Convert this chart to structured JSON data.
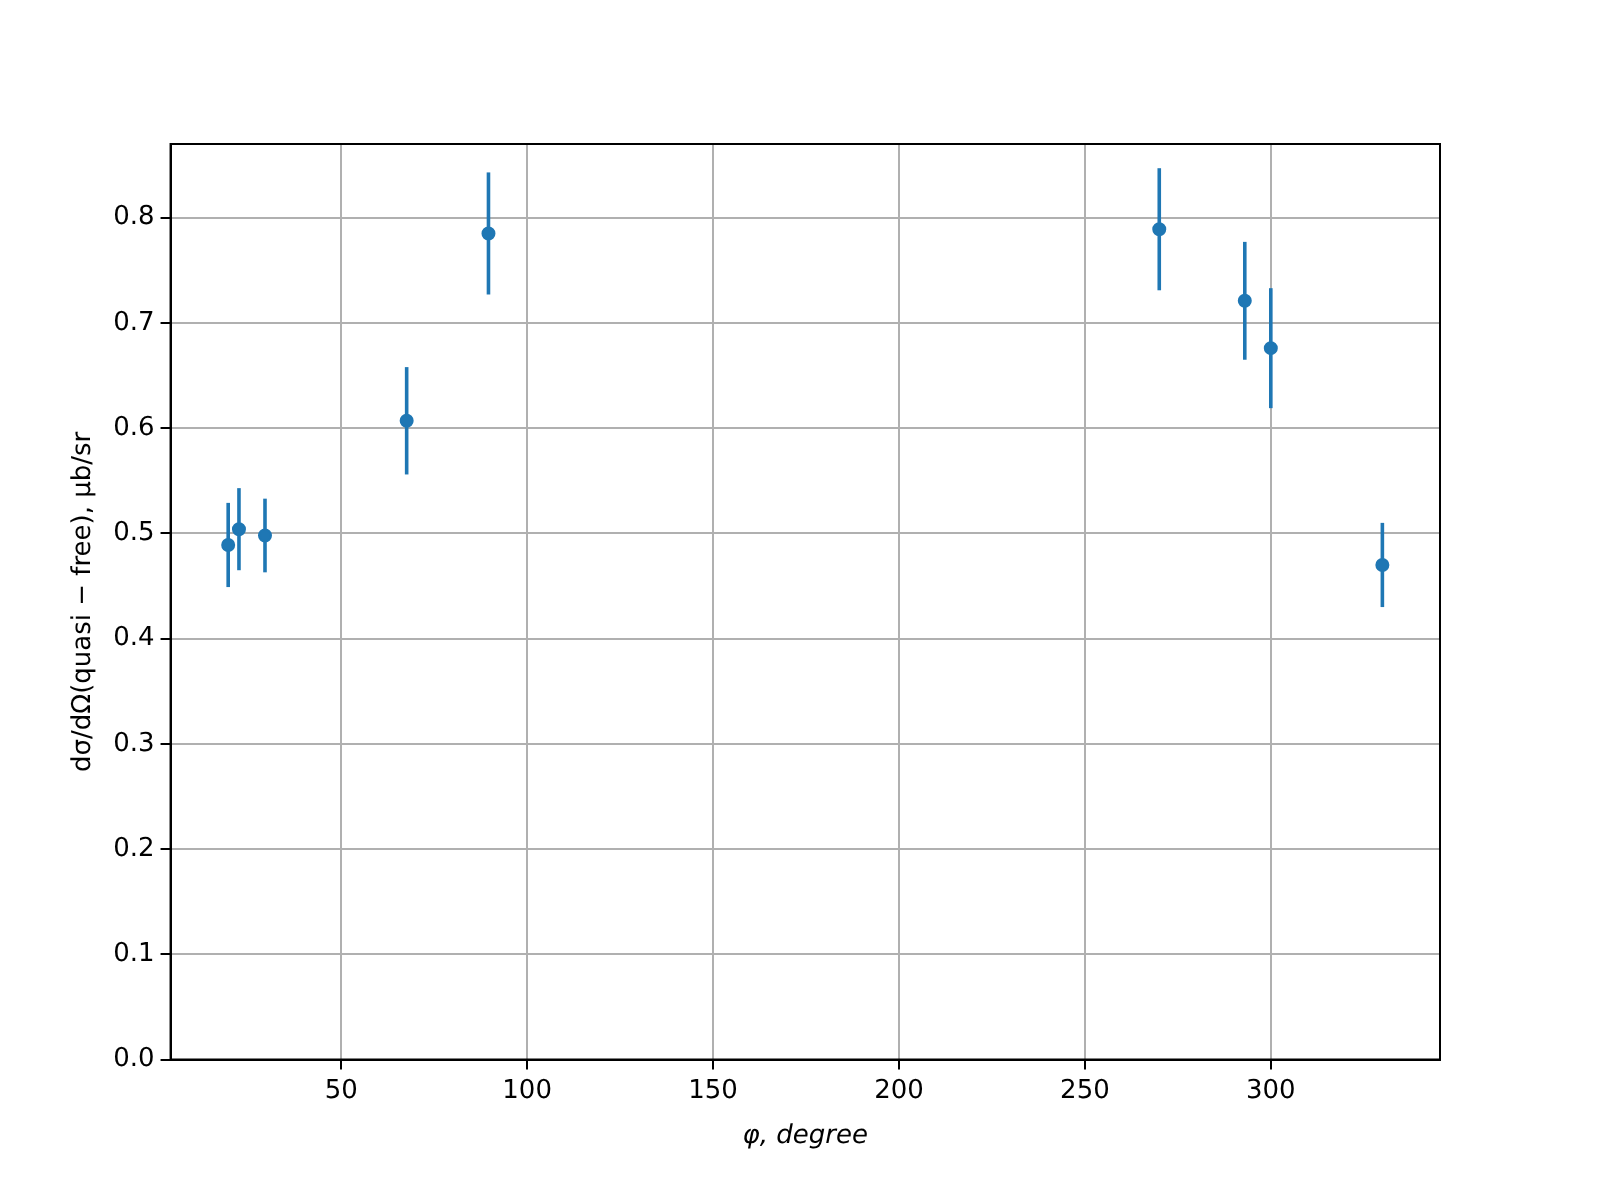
{
  "chart_data": {
    "type": "scatter",
    "xlabel": "φ, degree",
    "ylabel": "dσ/dΩ(quasi − free), μb/sr",
    "x": [
      19.6,
      22.5,
      29.5,
      67.6,
      89.6,
      270,
      293,
      300,
      330
    ],
    "series": [
      {
        "color": "#1f77b4",
        "values": [
          0.489,
          0.504,
          0.498,
          0.607,
          0.785,
          0.789,
          0.721,
          0.676,
          0.47
        ],
        "errors": [
          0.04,
          0.039,
          0.035,
          0.051,
          0.058,
          0.058,
          0.056,
          0.057,
          0.04
        ]
      }
    ],
    "xlim": [
      4.1,
      345.5
    ],
    "xticks": [
      50,
      100,
      150,
      200,
      250,
      300
    ],
    "ylim": [
      0,
      0.87
    ],
    "yticks": [
      {
        "value": 0,
        "label": "0.0"
      },
      0.1,
      0.2,
      0.3,
      0.4,
      0.5,
      0.6,
      0.7,
      0.8
    ],
    "grid": true,
    "marker": "circle",
    "legend": false
  }
}
